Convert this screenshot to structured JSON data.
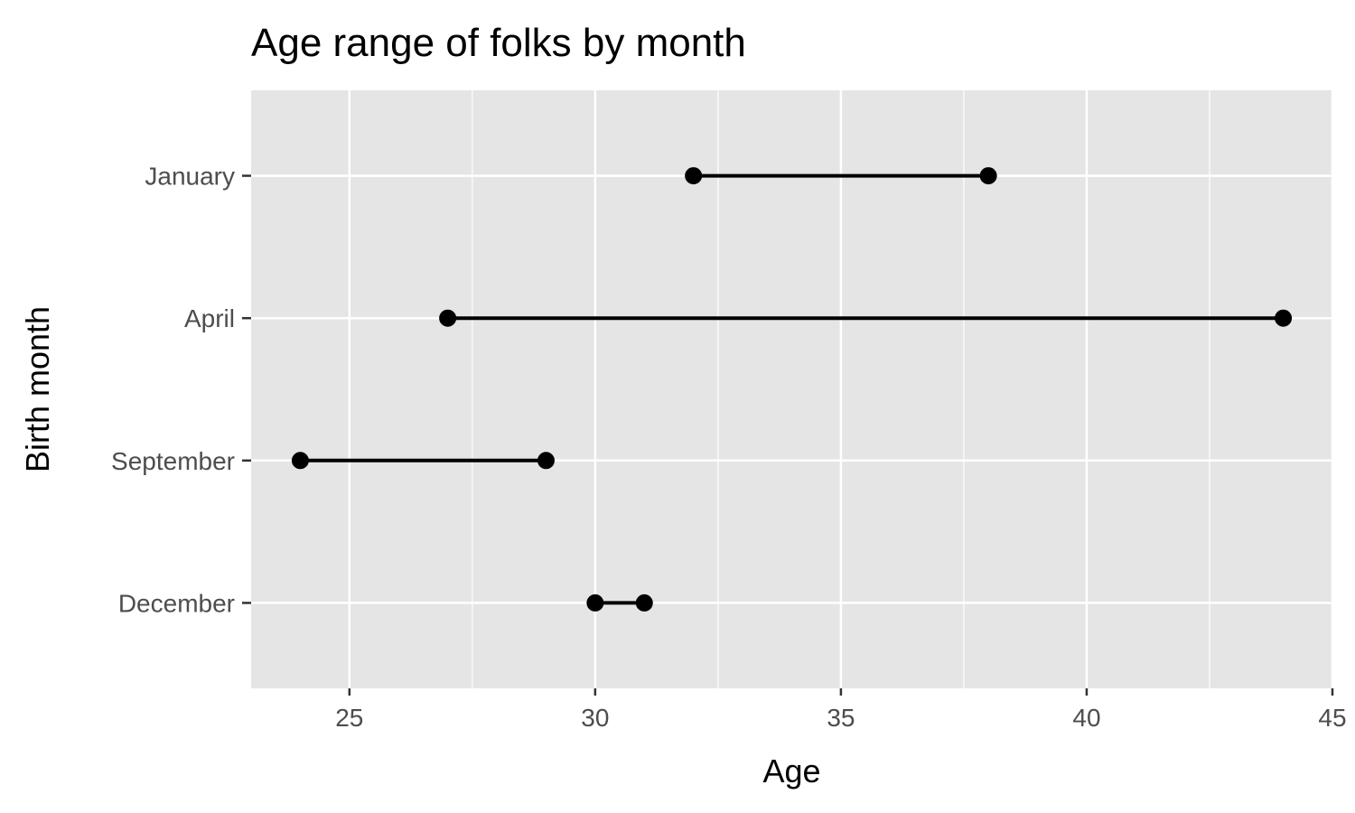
{
  "chart_data": {
    "type": "dumbbell",
    "title": "Age range of folks by month",
    "xlabel": "Age",
    "ylabel": "Birth month",
    "xlim": [
      23,
      45
    ],
    "x_ticks": [
      25,
      30,
      35,
      40,
      45
    ],
    "categories": [
      "January",
      "April",
      "September",
      "December"
    ],
    "series": [
      {
        "category": "January",
        "min": 32,
        "max": 38
      },
      {
        "category": "April",
        "min": 27,
        "max": 44
      },
      {
        "category": "September",
        "min": 24,
        "max": 29
      },
      {
        "category": "December",
        "min": 30,
        "max": 31
      }
    ],
    "grid": true,
    "colors": {
      "panel_background": "#e5e5e5",
      "grid_line": "#ffffff",
      "segment": "#000000",
      "point": "#000000",
      "tick_text": "#4d4d4d"
    }
  }
}
